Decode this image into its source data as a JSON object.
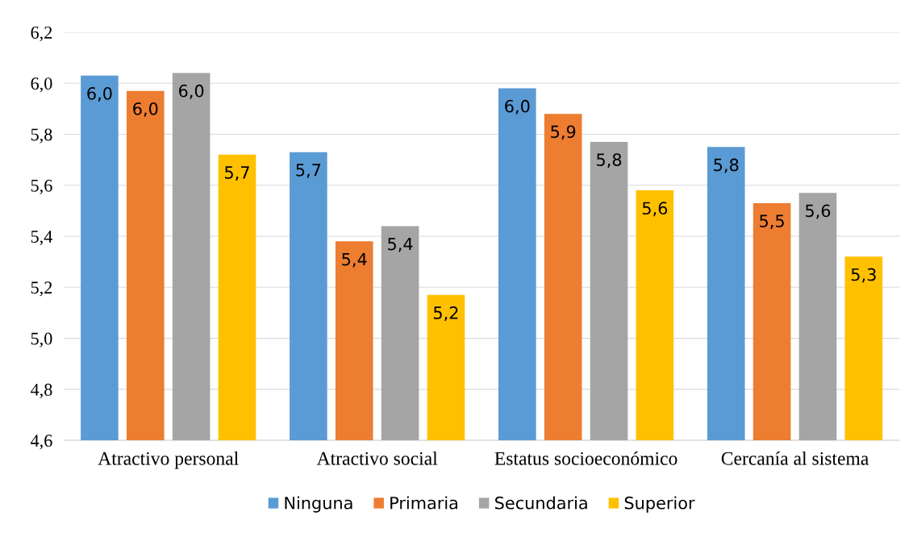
{
  "chart_data": {
    "type": "bar",
    "categories": [
      "Atractivo personal",
      "Atractivo social",
      "Estatus socioeconómico",
      "Cercanía al sistema"
    ],
    "series": [
      {
        "name": "Ninguna",
        "color": "#5b9bd5",
        "values": [
          6.03,
          5.73,
          5.98,
          5.75
        ],
        "value_labels": [
          "6,0",
          "5,7",
          "6,0",
          "5,8"
        ]
      },
      {
        "name": "Primaria",
        "color": "#ed7d31",
        "values": [
          5.97,
          5.38,
          5.88,
          5.53
        ],
        "value_labels": [
          "6,0",
          "5,4",
          "5,9",
          "5,5"
        ]
      },
      {
        "name": "Secundaria",
        "color": "#a5a5a5",
        "values": [
          6.04,
          5.44,
          5.77,
          5.57
        ],
        "value_labels": [
          "6,0",
          "5,4",
          "5,8",
          "5,6"
        ]
      },
      {
        "name": "Superior",
        "color": "#ffc000",
        "values": [
          5.72,
          5.17,
          5.58,
          5.32
        ],
        "value_labels": [
          "5,7",
          "5,2",
          "5,6",
          "5,3"
        ]
      }
    ],
    "ylim": [
      4.6,
      6.2
    ],
    "yticks": [
      {
        "value": 4.6,
        "label": "4,6"
      },
      {
        "value": 4.8,
        "label": "4,8"
      },
      {
        "value": 5.0,
        "label": "5,0"
      },
      {
        "value": 5.2,
        "label": "5,2"
      },
      {
        "value": 5.4,
        "label": "5,4"
      },
      {
        "value": 5.6,
        "label": "5,6"
      },
      {
        "value": 5.8,
        "label": "5,8"
      },
      {
        "value": 6.0,
        "label": "6,0"
      },
      {
        "value": 6.2,
        "label": "6,2"
      }
    ],
    "grid": "y",
    "legend": "bottom"
  }
}
